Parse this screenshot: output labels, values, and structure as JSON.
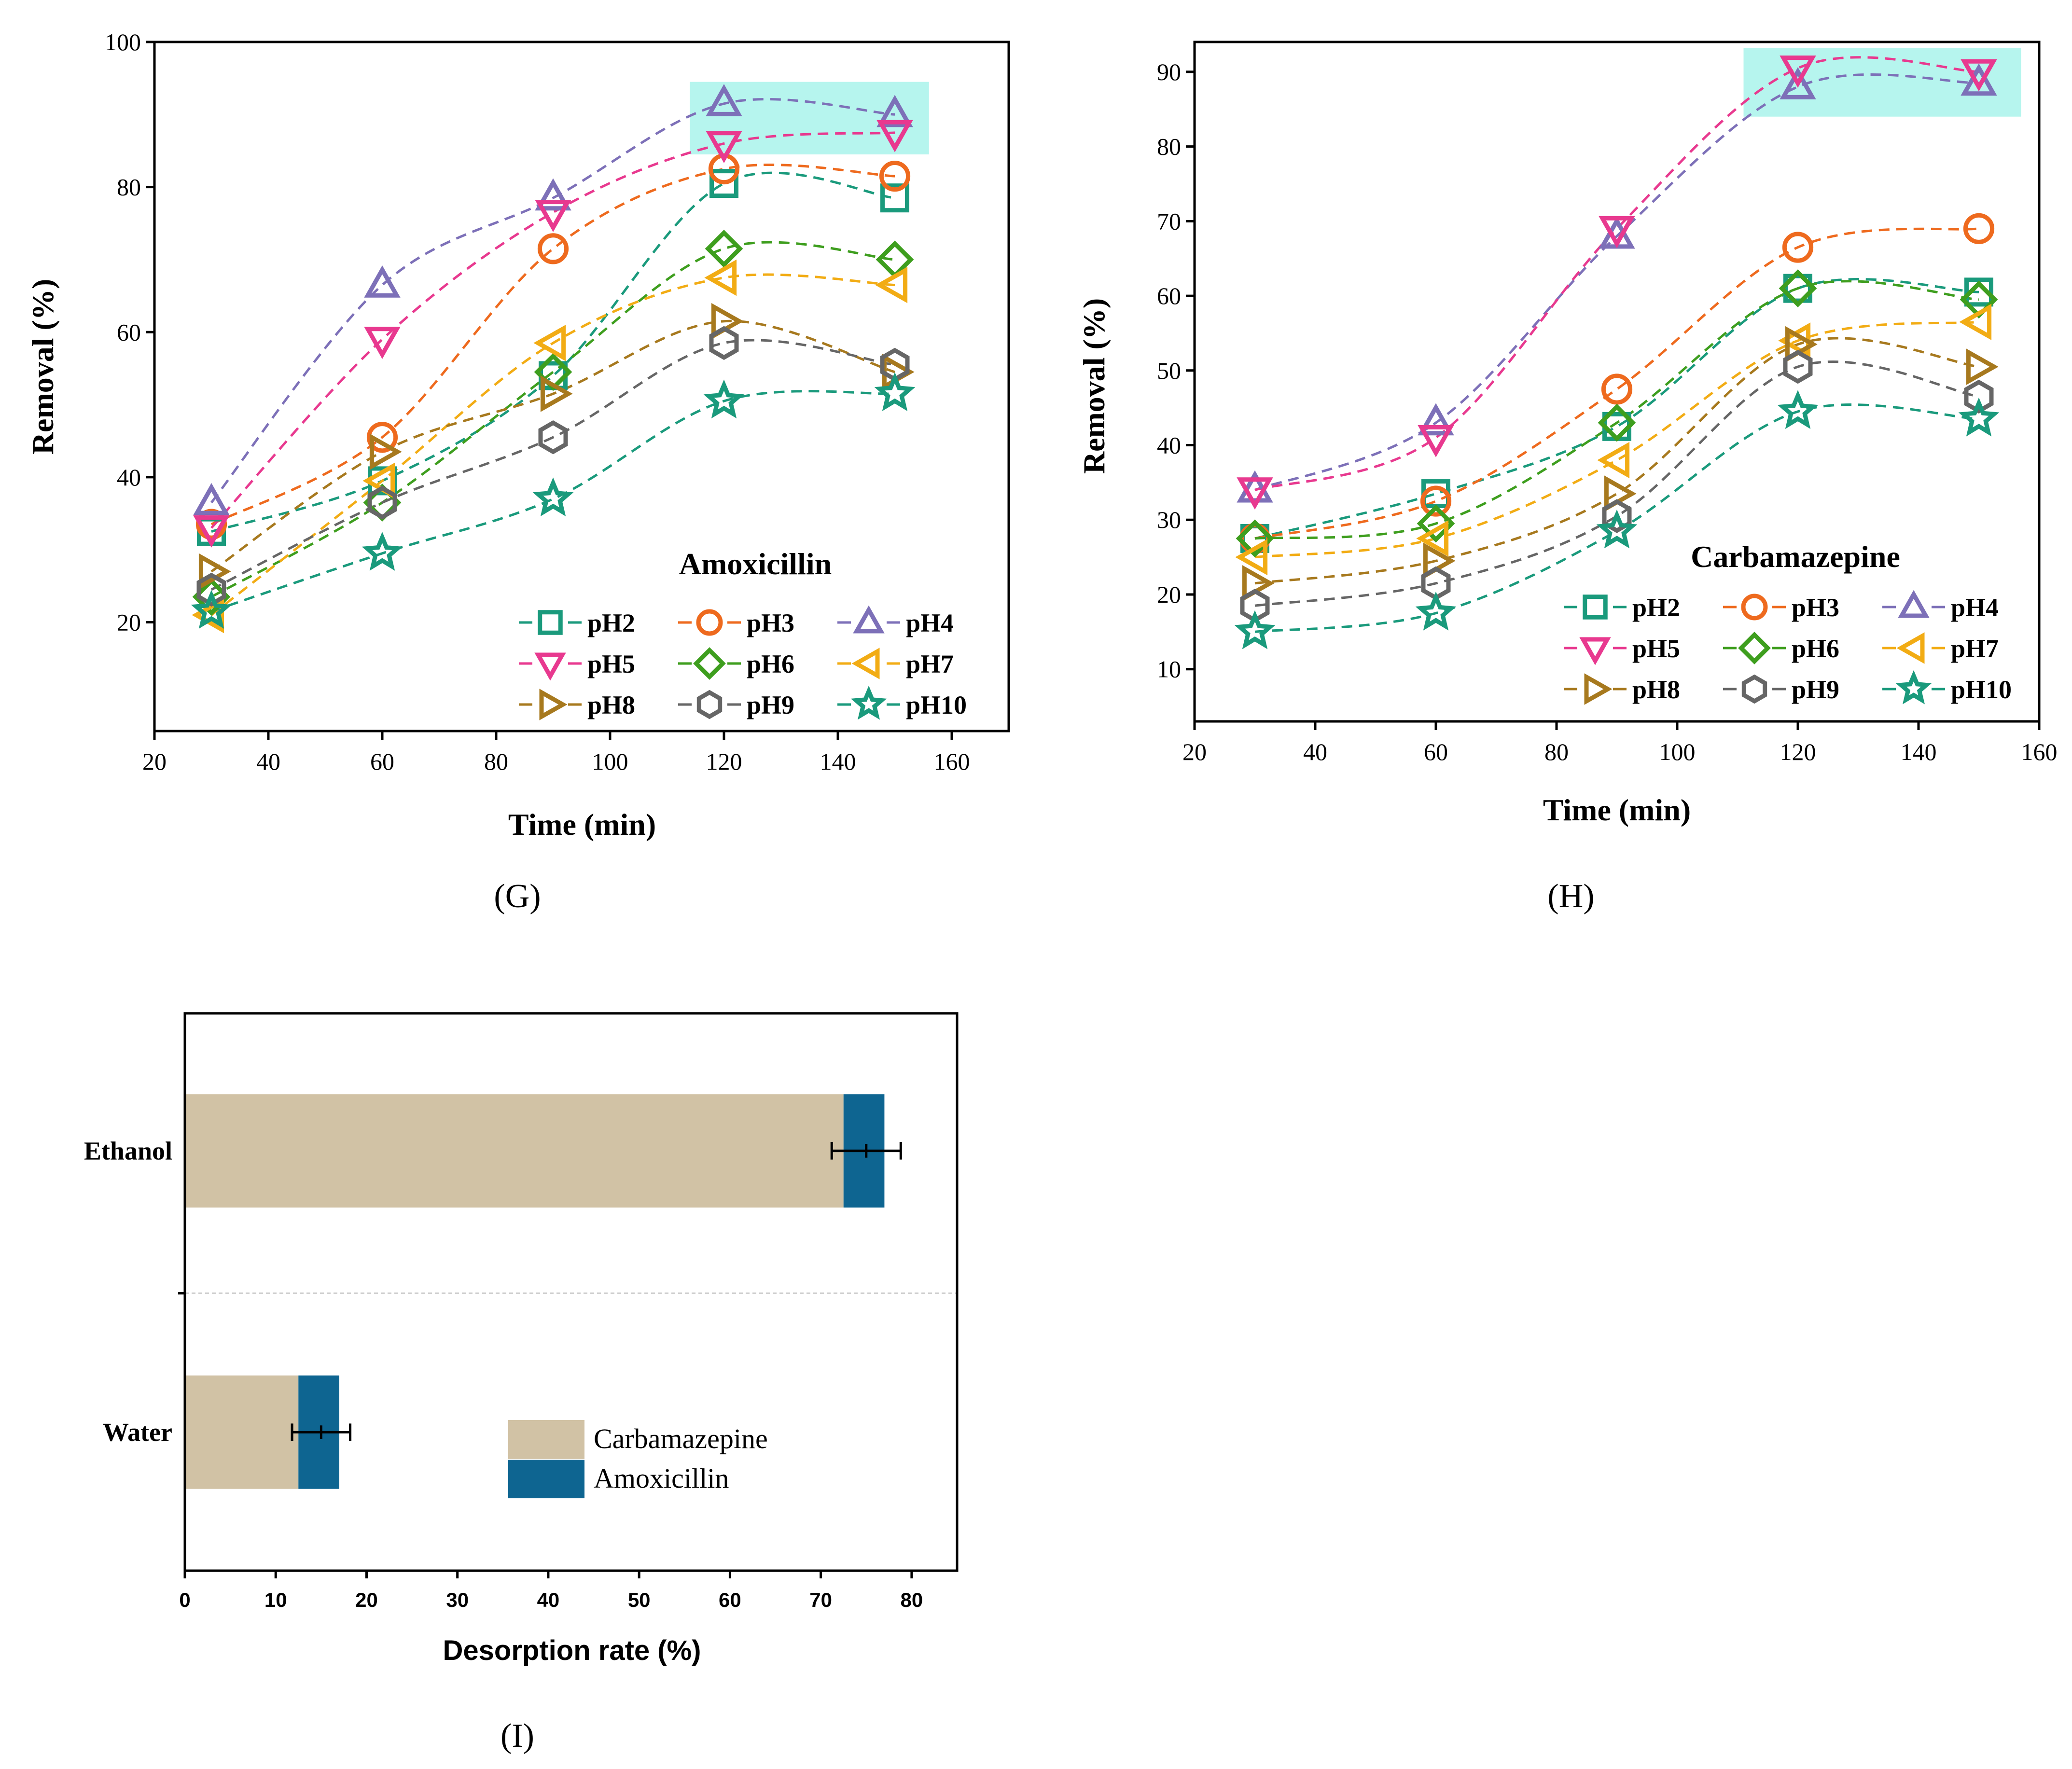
{
  "chart_data": [
    {
      "type": "line",
      "panel": "G",
      "panel_label": "(G)",
      "title": "Amoxicillin",
      "xlabel": "Time (min)",
      "ylabel": "Removal (%)",
      "xlim": [
        20,
        170
      ],
      "ylim": [
        5,
        100
      ],
      "xticks": [
        20,
        40,
        60,
        80,
        100,
        120,
        140,
        160
      ],
      "yticks": [
        20,
        40,
        60,
        80,
        100
      ],
      "x": [
        30,
        60,
        90,
        120,
        150
      ],
      "highlight": {
        "x": [
          114,
          156
        ],
        "y": [
          84.5,
          94.5
        ],
        "color": "#B6F5EE"
      },
      "legend_position": "bottom-right",
      "series": [
        {
          "name": "pH2",
          "marker": "square",
          "color": "#1A9A7C",
          "values": [
            32.5,
            39.5,
            54,
            80.5,
            78.5
          ]
        },
        {
          "name": "pH3",
          "marker": "circle",
          "color": "#EE6A1E",
          "values": [
            33.5,
            45.5,
            71.5,
            82.5,
            81.5
          ]
        },
        {
          "name": "pH4",
          "marker": "triangle-up",
          "color": "#7D70B8",
          "values": [
            36.5,
            66.5,
            78.5,
            91.5,
            90
          ]
        },
        {
          "name": "pH5",
          "marker": "triangle-down",
          "color": "#E8398F",
          "values": [
            33,
            59,
            76.5,
            86,
            87.5
          ]
        },
        {
          "name": "pH6",
          "marker": "diamond",
          "color": "#3E9E1E",
          "values": [
            23.5,
            36.5,
            54.5,
            71.5,
            70
          ]
        },
        {
          "name": "pH7",
          "marker": "triangle-left",
          "color": "#F2AC14",
          "values": [
            21,
            39.5,
            58.5,
            67.5,
            66.5
          ]
        },
        {
          "name": "pH8",
          "marker": "triangle-right",
          "color": "#A7791E",
          "values": [
            27,
            43.5,
            51.5,
            61.5,
            54.5
          ]
        },
        {
          "name": "pH9",
          "marker": "hexagon",
          "color": "#666666",
          "values": [
            24.5,
            36.5,
            45.5,
            58.5,
            55.5
          ]
        },
        {
          "name": "pH10",
          "marker": "star",
          "color": "#1A9A7C",
          "values": [
            21.5,
            29.5,
            37,
            50.5,
            51.5
          ]
        }
      ]
    },
    {
      "type": "line",
      "panel": "H",
      "panel_label": "(H)",
      "title": "Carbamazepine",
      "xlabel": "Time (min)",
      "ylabel": "Removal (%)",
      "xlim": [
        20,
        160
      ],
      "ylim": [
        3,
        94
      ],
      "xticks": [
        20,
        40,
        60,
        80,
        100,
        120,
        140,
        160
      ],
      "yticks": [
        10,
        20,
        30,
        40,
        50,
        60,
        70,
        80,
        90
      ],
      "x": [
        30,
        60,
        90,
        120,
        150
      ],
      "highlight": {
        "x": [
          111,
          157
        ],
        "y": [
          84,
          93.2
        ],
        "color": "#B6F5EE"
      },
      "legend_position": "bottom-right",
      "series": [
        {
          "name": "pH2",
          "marker": "square",
          "color": "#1A9A7C",
          "values": [
            27.5,
            33.5,
            42.5,
            61,
            60.5
          ]
        },
        {
          "name": "pH3",
          "marker": "circle",
          "color": "#EE6A1E",
          "values": [
            27.5,
            32.5,
            47.5,
            66.5,
            69
          ]
        },
        {
          "name": "pH4",
          "marker": "triangle-up",
          "color": "#7D70B8",
          "values": [
            34,
            43,
            68,
            88,
            88.5
          ]
        },
        {
          "name": "pH5",
          "marker": "triangle-down",
          "color": "#E8398F",
          "values": [
            34,
            41,
            69,
            90.5,
            90
          ]
        },
        {
          "name": "pH6",
          "marker": "diamond",
          "color": "#3E9E1E",
          "values": [
            27.5,
            29.5,
            43,
            61,
            59.5
          ]
        },
        {
          "name": "pH7",
          "marker": "triangle-left",
          "color": "#F2AC14",
          "values": [
            25,
            27.5,
            38,
            54,
            56.5
          ]
        },
        {
          "name": "pH8",
          "marker": "triangle-right",
          "color": "#A7791E",
          "values": [
            21.5,
            24.5,
            33.5,
            53.5,
            50.5
          ]
        },
        {
          "name": "pH9",
          "marker": "hexagon",
          "color": "#666666",
          "values": [
            18.5,
            21.5,
            30.5,
            50.5,
            46.5
          ]
        },
        {
          "name": "pH10",
          "marker": "star",
          "color": "#1A9A7C",
          "values": [
            15,
            17.5,
            28.5,
            44.5,
            43.5
          ]
        }
      ]
    },
    {
      "type": "bar",
      "orientation": "horizontal",
      "stacked": true,
      "panel": "I",
      "panel_label": "(I)",
      "xlabel": "Desorption rate (%)",
      "ylabel": "",
      "xlim": [
        0,
        85
      ],
      "xticks": [
        0,
        10,
        20,
        30,
        40,
        50,
        60,
        70,
        80
      ],
      "categories": [
        "Ethanol",
        "Water"
      ],
      "legend_position": "lower-right",
      "series": [
        {
          "name": "Carbamazepine",
          "color": "#D1C2A5",
          "values": [
            72.5,
            12.5
          ]
        },
        {
          "name": "Amoxicillin",
          "color": "#0E6591",
          "values": [
            4.5,
            4.5
          ]
        }
      ],
      "error_bars": [
        {
          "category": "Ethanol",
          "center": 75,
          "err": 3.8
        },
        {
          "category": "Water",
          "center": 15,
          "err": 3.2
        }
      ]
    }
  ]
}
